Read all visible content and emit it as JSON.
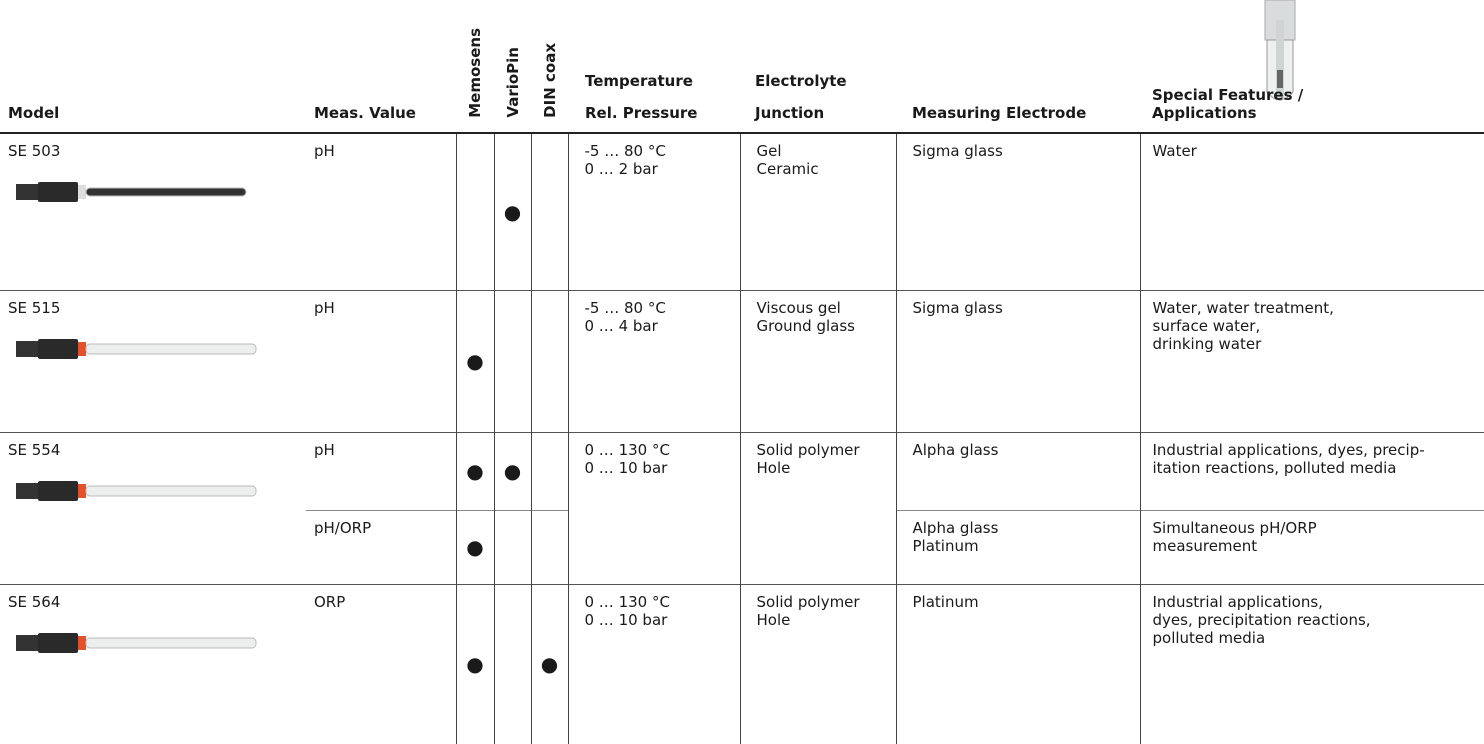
{
  "header": {
    "model": "Model",
    "meas_value": "Meas. Value",
    "memosens": "Memosens",
    "variopin": "VarioPin",
    "din_coax": "DIN coax",
    "temperature": "Temperature",
    "pressure": "Rel. Pressure",
    "electrolyte": "Electrolyte",
    "junction": "Junction",
    "measuring_electrode": "Measuring Electrode",
    "special_features": [
      "Special Features /",
      "Applications"
    ]
  },
  "rows": [
    {
      "model": "SE 503",
      "temperature": [
        "-5 … 80 °C",
        "0 … 2 bar"
      ],
      "electrolyte": [
        "Gel",
        "Ceramic"
      ],
      "measurements": [
        {
          "value": "pH",
          "variopin": "●",
          "electrode": [
            "Sigma glass"
          ],
          "applications": [
            "Water"
          ]
        }
      ]
    },
    {
      "model": "SE 515",
      "temperature": [
        "-5 … 80 °C",
        "0 … 4 bar"
      ],
      "electrolyte": [
        "Viscous gel",
        "Ground glass"
      ],
      "measurements": [
        {
          "value": "pH",
          "memosens": "●",
          "electrode": [
            "Sigma glass"
          ],
          "applications": [
            "Water, water treatment,",
            "surface water,",
            "drinking water"
          ]
        }
      ]
    },
    {
      "model": "SE 554",
      "temperature": [
        "0 … 130 °C",
        "0 … 10 bar"
      ],
      "electrolyte": [
        "Solid polymer",
        "Hole"
      ],
      "measurements": [
        {
          "value": "pH",
          "memosens": "●",
          "variopin": "●",
          "electrode": [
            "Alpha glass"
          ],
          "applications": [
            "Industrial applications, dyes, precip-",
            "itation reactions, polluted media"
          ]
        },
        {
          "value": "pH/ORP",
          "memosens": "●",
          "electrode": [
            "Alpha glass",
            "Platinum"
          ],
          "applications": [
            "Simultaneous pH/ORP",
            "measurement"
          ]
        }
      ]
    },
    {
      "model": "SE 564",
      "temperature": [
        "0 … 130 °C",
        "0 … 10 bar"
      ],
      "electrolyte": [
        "Solid polymer",
        "Hole"
      ],
      "measurements": [
        {
          "value": "ORP",
          "memosens": "●",
          "din_coax": "●",
          "electrode": [
            "Platinum"
          ],
          "applications": [
            "Industrial applications,",
            "dyes, precipitation reactions,",
            "polluted media"
          ]
        }
      ]
    }
  ]
}
